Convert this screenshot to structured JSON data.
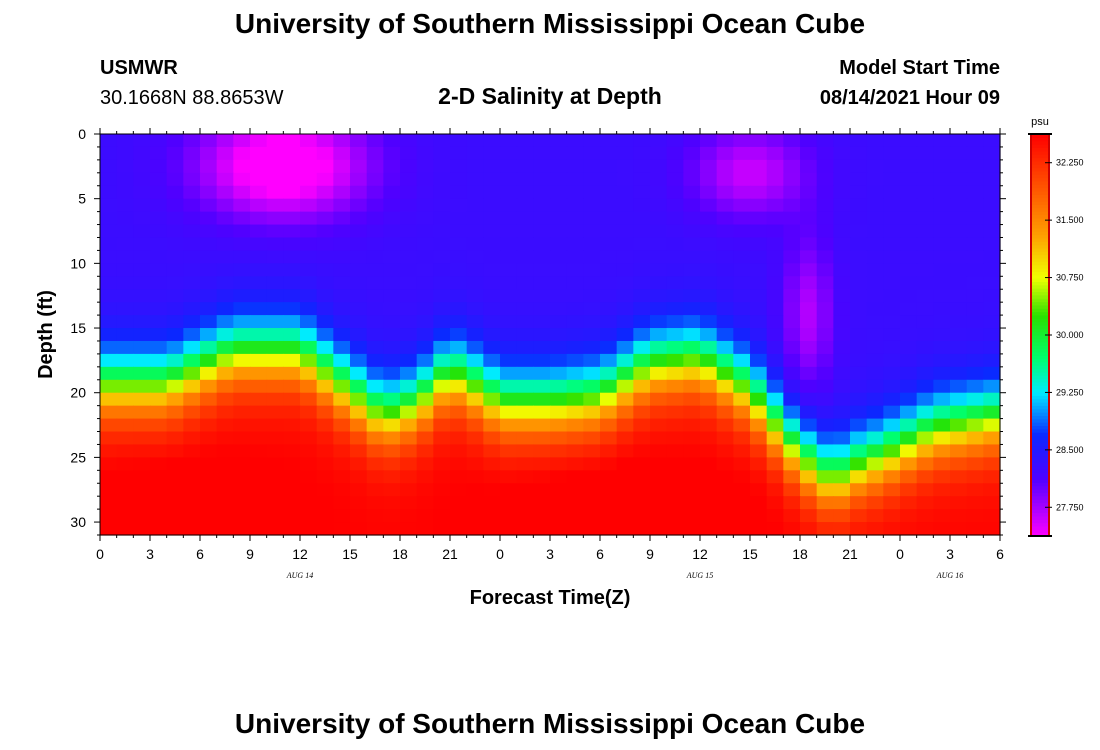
{
  "header": {
    "title": "University of Southern Mississippi Ocean Cube",
    "station": "USMWR",
    "coords": "30.1668N  88.8653W",
    "subtitle": "2-D Salinity at Depth",
    "model_start_label": "Model Start Time",
    "model_start_value": "08/14/2021 Hour 09"
  },
  "footer": {
    "title": "University of Southern Mississippi Ocean Cube"
  },
  "colors": {
    "low": "#ff00ff",
    "high": "#ff0000",
    "colorbar_border": "#cc0000"
  },
  "chart_data": {
    "type": "heatmap",
    "title": "2-D Salinity at Depth",
    "xlabel": "Forecast Time(Z)",
    "ylabel": "Depth (ft)",
    "units": "psu",
    "xlim": [
      0,
      54
    ],
    "ylim": [
      31,
      0
    ],
    "x_ticks": [
      0,
      3,
      6,
      9,
      12,
      15,
      18,
      21,
      24,
      27,
      30,
      33,
      36,
      39,
      42,
      45,
      48,
      51,
      54
    ],
    "x_tick_labels": [
      "0",
      "3",
      "6",
      "9",
      "12",
      "15",
      "18",
      "21",
      "0",
      "3",
      "6",
      "9",
      "12",
      "15",
      "18",
      "21",
      "0",
      "3",
      "6"
    ],
    "date_labels": [
      {
        "x": 12,
        "label": "AUG  14"
      },
      {
        "x": 36,
        "label": "AUG  15"
      },
      {
        "x": 51,
        "label": "AUG  16"
      }
    ],
    "y_ticks": [
      0,
      5,
      10,
      15,
      20,
      25,
      30
    ],
    "y_tick_labels": [
      "0",
      "5",
      "10",
      "15",
      "20",
      "25",
      "30"
    ],
    "colorbar": {
      "min": 27.375,
      "max": 32.625,
      "ticks": [
        27.75,
        28.5,
        29.25,
        30.0,
        30.75,
        31.5,
        32.25
      ],
      "tick_labels": [
        "27.750",
        "28.500",
        "29.250",
        "30.000",
        "30.750",
        "31.500",
        "32.250"
      ]
    },
    "field": {
      "cols": 54,
      "rows": 31,
      "surface_salinity": 28.3,
      "bottom_salinity": 32.6,
      "halocline_width_ft": 1.6,
      "halocline_depth_profile": {
        "x": [
          0,
          4,
          8,
          12,
          15,
          17,
          19,
          21,
          23,
          24,
          27,
          30,
          33,
          36,
          39,
          42,
          44,
          45,
          47,
          50,
          54
        ],
        "y": [
          19.5,
          19.5,
          17.0,
          17.0,
          20.0,
          22.0,
          21.0,
          18.5,
          20.0,
          21.0,
          21.0,
          20.5,
          18.0,
          17.5,
          20.0,
          25.0,
          27.0,
          26.0,
          25.0,
          23.0,
          22.0
        ]
      },
      "fresh_lens": [
        {
          "x": 11,
          "depth": 2.5,
          "sx": 5.0,
          "sd": 4.0,
          "amp": -1.2
        },
        {
          "x": 39,
          "depth": 3.0,
          "sx": 3.5,
          "sd": 3.5,
          "amp": -0.7
        },
        {
          "x": 42.5,
          "depth": 14.0,
          "sx": 1.5,
          "sd": 6.0,
          "amp": -0.6
        }
      ],
      "salty_core": [
        {
          "x": 5,
          "depth": 29.5,
          "sx": 6.0,
          "sd": 4.0,
          "amp": 0.3
        },
        {
          "x": 31,
          "depth": 29.5,
          "sx": 7.0,
          "sd": 4.0,
          "amp": 0.3
        }
      ]
    }
  }
}
